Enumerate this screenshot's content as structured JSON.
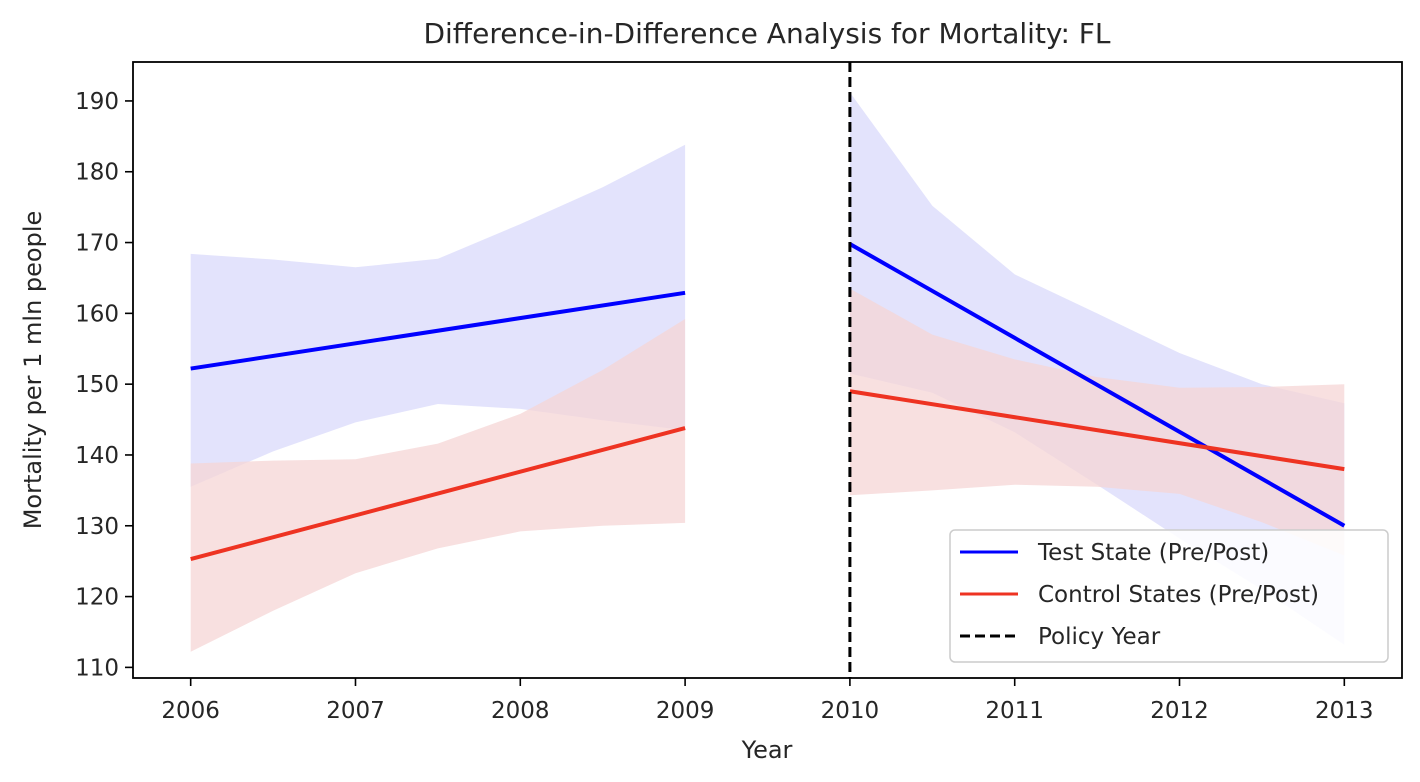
{
  "chart_data": {
    "type": "line",
    "title": "Difference-in-Difference Analysis for Mortality: FL",
    "xlabel": "Year",
    "ylabel": "Mortality per 1 mln people",
    "xlim": [
      2005.65,
      2013.35
    ],
    "ylim": [
      108.5,
      195.5
    ],
    "x_ticks": [
      2006,
      2007,
      2008,
      2009,
      2010,
      2011,
      2012,
      2013
    ],
    "y_ticks": [
      110,
      120,
      130,
      140,
      150,
      160,
      170,
      180,
      190
    ],
    "grid": false,
    "policy_year": 2010,
    "legend_position": "lower right",
    "series": [
      {
        "name": "Test State (Pre/Post)",
        "color": "#0000ff",
        "band_color": "#d9d9fb",
        "segments": [
          {
            "period": "pre",
            "x": [
              2006,
              2009
            ],
            "y": [
              152.2,
              162.9
            ],
            "band_x": [
              2006,
              2006.5,
              2007,
              2007.5,
              2008,
              2008.5,
              2009
            ],
            "band_lower": [
              135.5,
              140.5,
              144.6,
              147.2,
              146.5,
              144.9,
              143.5
            ],
            "band_upper": [
              168.4,
              167.6,
              166.5,
              167.7,
              172.6,
              177.8,
              183.8
            ]
          },
          {
            "period": "post",
            "x": [
              2010,
              2013
            ],
            "y": [
              169.8,
              130.0
            ],
            "band_x": [
              2010,
              2010.5,
              2011,
              2011.5,
              2012,
              2012.5,
              2013
            ],
            "band_lower": [
              151.5,
              148.8,
              143.2,
              135.8,
              128.2,
              121.0,
              113.2
            ],
            "band_upper": [
              191.2,
              175.2,
              165.5,
              160.0,
              154.4,
              150.0,
              147.3
            ]
          }
        ]
      },
      {
        "name": "Control States (Pre/Post)",
        "color": "#ee3322",
        "band_color": "#f6d6d5",
        "segments": [
          {
            "period": "pre",
            "x": [
              2006,
              2009
            ],
            "y": [
              125.3,
              143.8
            ],
            "band_x": [
              2006,
              2006.5,
              2007,
              2007.5,
              2008,
              2008.5,
              2009
            ],
            "band_lower": [
              112.2,
              118.0,
              123.3,
              126.8,
              129.2,
              130.0,
              130.4
            ],
            "band_upper": [
              138.8,
              139.2,
              139.4,
              141.6,
              145.8,
              152.0,
              159.2
            ]
          },
          {
            "period": "post",
            "x": [
              2010,
              2013
            ],
            "y": [
              149.0,
              138.0
            ],
            "band_x": [
              2010,
              2010.5,
              2011,
              2011.5,
              2012,
              2012.5,
              2013
            ],
            "band_lower": [
              134.3,
              135.0,
              135.8,
              135.5,
              134.5,
              130.5,
              125.8
            ],
            "band_upper": [
              163.5,
              157.0,
              153.5,
              151.0,
              149.5,
              149.6,
              150.0
            ]
          }
        ]
      },
      {
        "name": "Policy Year",
        "color": "#000000",
        "style": "dashed"
      }
    ]
  }
}
